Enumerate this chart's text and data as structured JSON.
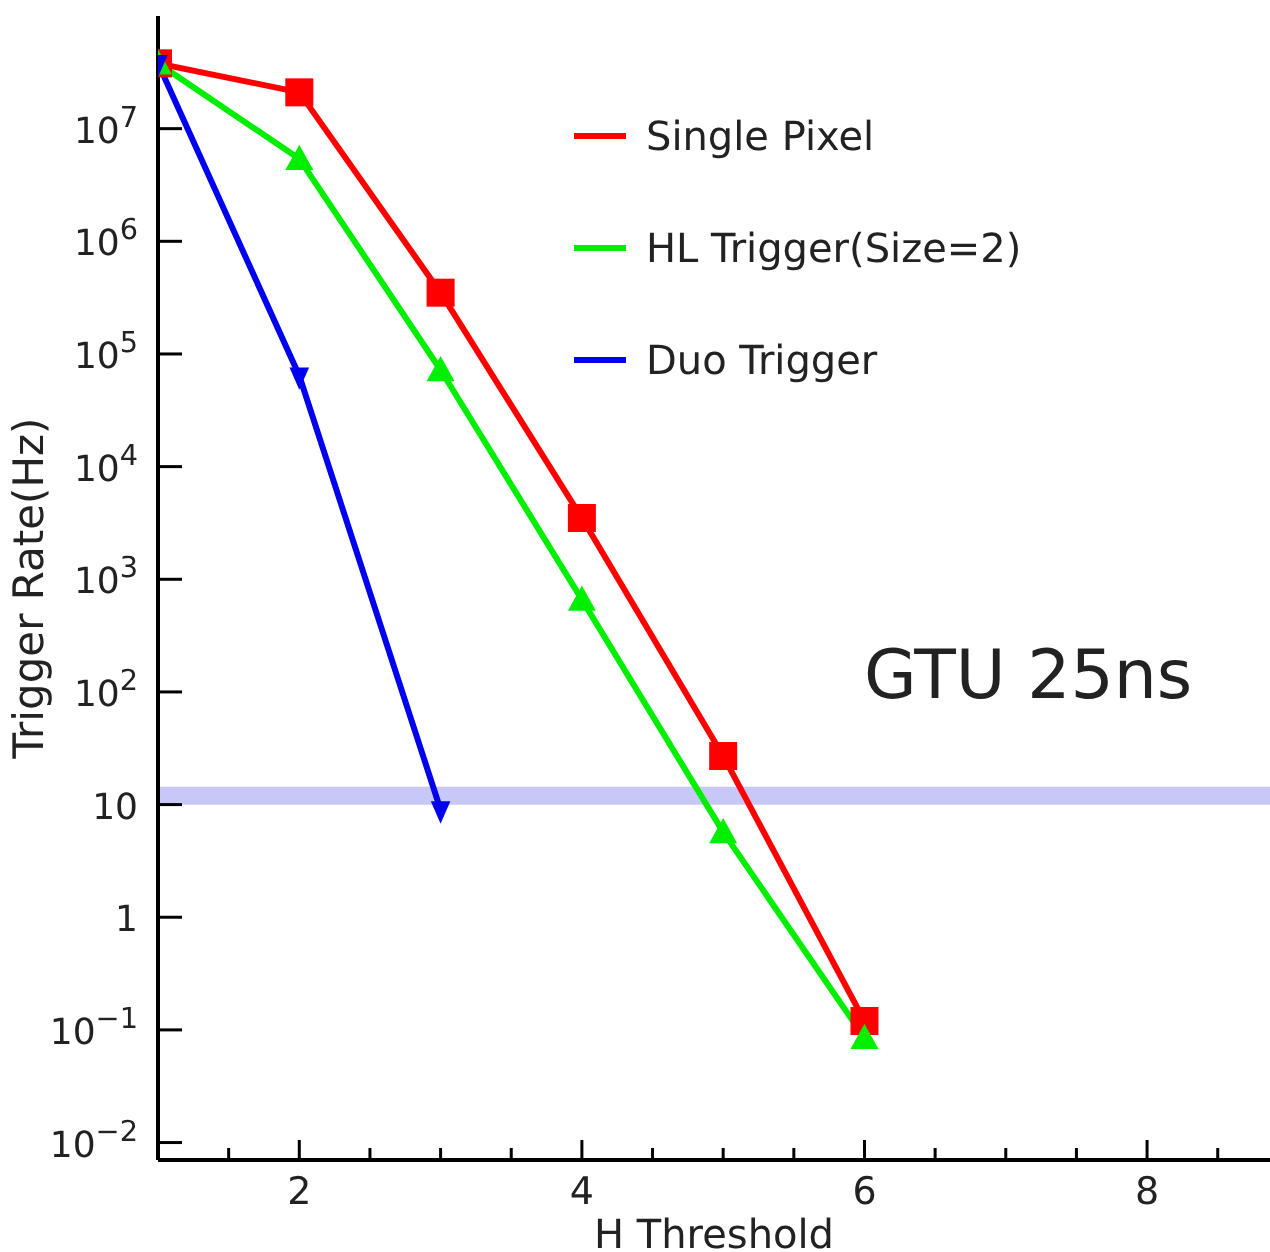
{
  "chart_data": {
    "type": "line",
    "xlabel": "H Threshold",
    "ylabel": "Trigger Rate(Hz)",
    "log": "y",
    "xlim": [
      1,
      8.87
    ],
    "ylim": [
      0.007,
      100000000
    ],
    "xticks": [
      {
        "value": 1.5,
        "label": null
      },
      2,
      {
        "value": 2.5,
        "label": null
      },
      {
        "value": 3,
        "label": null
      },
      {
        "value": 3.5,
        "label": null
      },
      4,
      {
        "value": 4.5,
        "label": null
      },
      {
        "value": 5,
        "label": null
      },
      {
        "value": 5.5,
        "label": null
      },
      6,
      {
        "value": 6.5,
        "label": null
      },
      {
        "value": 7,
        "label": null
      },
      {
        "value": 7.5,
        "label": null
      },
      8,
      {
        "value": 8.5,
        "label": null
      }
    ],
    "yticks": [
      {
        "value": 0.01,
        "label": "10$^{−2}$"
      },
      {
        "value": 0.1,
        "label": "10$^{−1}$"
      },
      1,
      10,
      {
        "value": 100,
        "label": "10$^{2}$"
      },
      {
        "value": 1000,
        "label": "10$^{3}$"
      },
      {
        "value": 10000,
        "label": "10$^{4}$"
      },
      {
        "value": 100000,
        "label": "10$^{5}$"
      },
      {
        "value": 1000000,
        "label": "10$^{6}$"
      },
      {
        "value": 10000000,
        "label": "10$^{7}$"
      }
    ],
    "x": [
      1,
      2,
      3,
      4,
      5,
      6
    ],
    "series": [
      {
        "name": "Single Pixel",
        "color": "#ff0000",
        "marker": "square",
        "values": [
          38000000,
          21000000,
          350000,
          3500,
          27,
          0.12
        ]
      },
      {
        "name": "HL Trigger(Size=2)",
        "color": "#00ee00",
        "marker": "triangle",
        "values": [
          38000000,
          5400000,
          72000,
          660,
          5.7,
          0.085
        ]
      },
      {
        "name": "Duo Trigger",
        "color": "#0000ee",
        "marker": "triangle-down",
        "values": [
          38000000,
          64000,
          9,
          null,
          null,
          null
        ]
      }
    ],
    "ref_lines": [
      {
        "axis": "y",
        "value": 12,
        "color": "#c8c8f8"
      }
    ],
    "annotations": [
      "GTU 25ns"
    ],
    "legend": "top right"
  }
}
